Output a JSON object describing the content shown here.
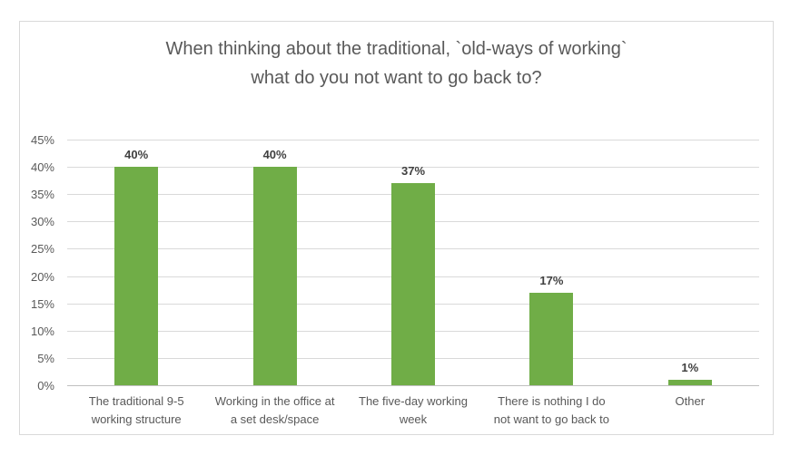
{
  "chart": {
    "title_line1": "When thinking about the traditional, `old-ways of working`",
    "title_line2": "what do you not want to go back to?"
  },
  "chart_data": {
    "type": "bar",
    "title": "When thinking about the traditional, `old-ways of working` what do you not want to go back to?",
    "categories": [
      "The traditional 9-5 working structure",
      "Working in the office at a set desk/space",
      "The five-day working week",
      "There is nothing I do not want to go back to",
      "Other"
    ],
    "values": [
      40,
      40,
      37,
      17,
      1
    ],
    "data_labels": [
      "40%",
      "40%",
      "37%",
      "17%",
      "1%"
    ],
    "xlabel": "",
    "ylabel": "",
    "ylim": [
      0,
      45
    ],
    "y_tick_step": 5,
    "y_tick_labels": [
      "0%",
      "5%",
      "10%",
      "15%",
      "20%",
      "25%",
      "30%",
      "35%",
      "40%",
      "45%"
    ],
    "grid": true,
    "legend": "none"
  },
  "colors": {
    "bar": "#70AD47",
    "title_text": "#595959",
    "axis_text": "#595959",
    "data_label_text": "#404040",
    "gridline": "#D9D9D9",
    "axis_line": "#BFBFBF",
    "chart_border": "#D9D9D9",
    "background": "#FFFFFF"
  }
}
